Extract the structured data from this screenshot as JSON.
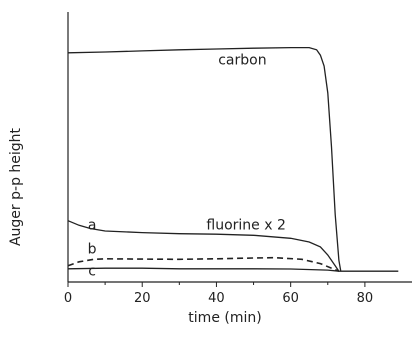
{
  "chart_data": {
    "type": "line",
    "title": "",
    "xlabel": "time (min)",
    "ylabel": "Auger p-p height",
    "xlim": [
      0,
      90
    ],
    "ylim": [
      0,
      100
    ],
    "x_ticks": [
      0,
      20,
      40,
      60,
      80
    ],
    "y_ticks": [],
    "grid": false,
    "legend": "none",
    "series": [
      {
        "name": "carbon",
        "style": "solid",
        "points": [
          [
            0,
            84.9
          ],
          [
            10,
            85.2
          ],
          [
            20,
            85.6
          ],
          [
            30,
            86.0
          ],
          [
            40,
            86.3
          ],
          [
            50,
            86.6
          ],
          [
            60,
            86.8
          ],
          [
            65,
            86.8
          ],
          [
            67,
            86.0
          ],
          [
            68,
            84.0
          ],
          [
            69,
            80.0
          ],
          [
            70,
            70.0
          ],
          [
            71,
            50.0
          ],
          [
            72,
            25.0
          ],
          [
            73,
            8.0
          ],
          [
            73.5,
            4.0
          ]
        ]
      },
      {
        "name": "a",
        "style": "solid",
        "points": [
          [
            0,
            22.7
          ],
          [
            3,
            21.0
          ],
          [
            6,
            19.8
          ],
          [
            10,
            18.9
          ],
          [
            20,
            18.3
          ],
          [
            30,
            17.9
          ],
          [
            40,
            17.7
          ],
          [
            50,
            17.3
          ],
          [
            60,
            16.2
          ],
          [
            65,
            14.8
          ],
          [
            68,
            13.0
          ],
          [
            70,
            10.0
          ],
          [
            72,
            6.0
          ],
          [
            73,
            4.0
          ]
        ]
      },
      {
        "name": "b",
        "style": "dashed",
        "points": [
          [
            0,
            6.0
          ],
          [
            3,
            7.5
          ],
          [
            7,
            8.4
          ],
          [
            10,
            8.6
          ],
          [
            20,
            8.5
          ],
          [
            30,
            8.4
          ],
          [
            40,
            8.6
          ],
          [
            50,
            8.9
          ],
          [
            56,
            9.0
          ],
          [
            63,
            8.4
          ],
          [
            68,
            6.8
          ],
          [
            73,
            4.0
          ]
        ]
      },
      {
        "name": "c",
        "style": "solid",
        "points": [
          [
            0,
            4.9
          ],
          [
            10,
            5.1
          ],
          [
            20,
            5.1
          ],
          [
            30,
            4.9
          ],
          [
            40,
            4.9
          ],
          [
            50,
            4.9
          ],
          [
            60,
            4.8
          ],
          [
            70,
            4.4
          ],
          [
            73,
            4.0
          ],
          [
            80,
            4.0
          ],
          [
            89,
            4.0
          ]
        ]
      }
    ],
    "annotations": [
      {
        "text": "carbon",
        "x": 47,
        "y": 80.5
      },
      {
        "text": "fluorine  x 2",
        "x": 48,
        "y": 19.5
      },
      {
        "text": "a",
        "x": 6.5,
        "y": 19.5
      },
      {
        "text": "b",
        "x": 6.5,
        "y": 10.5
      },
      {
        "text": "c",
        "x": 6.5,
        "y": 2.5
      }
    ]
  }
}
